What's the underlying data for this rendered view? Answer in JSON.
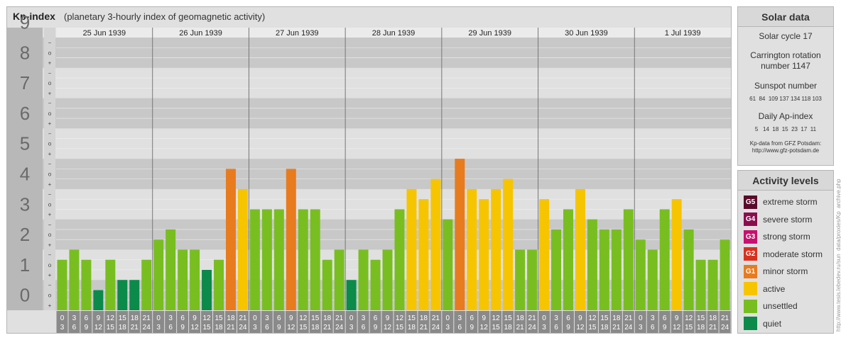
{
  "header": {
    "title": "Kp-index",
    "subtitle": "(planetary 3-hourly index of geomagnetic activity)"
  },
  "chart_data": {
    "type": "bar",
    "ylim": [
      0,
      9
    ],
    "y_ticks": [
      "0",
      "1",
      "2",
      "3",
      "4",
      "5",
      "6",
      "7",
      "8",
      "9"
    ],
    "minor_tick_labels": [
      "+",
      "o",
      "−"
    ],
    "days": [
      "25 Jun 1939",
      "26 Jun 1939",
      "27 Jun 1939",
      "28 Jun 1939",
      "29 Jun 1939",
      "30 Jun 1939",
      "1 Jul 1939"
    ],
    "interval_top": [
      "0",
      "3",
      "6",
      "9",
      "12",
      "15",
      "18",
      "21"
    ],
    "interval_bottom": [
      "3",
      "6",
      "9",
      "12",
      "15",
      "18",
      "21",
      "24"
    ],
    "values": [
      1.667,
      2,
      1.667,
      0.667,
      1.667,
      1,
      1,
      1.667,
      2.333,
      2.667,
      2,
      2,
      1.333,
      1.667,
      4.667,
      4,
      3.333,
      3.333,
      3.333,
      4.667,
      3.333,
      3.333,
      1.667,
      2,
      1,
      2,
      1.667,
      2,
      3.333,
      4,
      3.667,
      4.333,
      3,
      5,
      4,
      3.667,
      4,
      4.333,
      2,
      2,
      3.667,
      2.667,
      3.333,
      4,
      3,
      2.667,
      2.667,
      3.333,
      2.333,
      2,
      3.333,
      3.667,
      2.667,
      1.667,
      1.667,
      2.333
    ],
    "level_colors": {
      "quiet": "#0b8a4a",
      "unsettled": "#78be20",
      "active": "#f7c400",
      "G1": "#e87b1e"
    }
  },
  "solar": {
    "title": "Solar data",
    "cycle": "Solar cycle 17",
    "carrington_1": "Carrington rotation",
    "carrington_2": "number 1147",
    "sunspot_title": "Sunspot number",
    "sunspot_values": "61  84  109 137 134 118 103",
    "ap_title": "Daily Ap-index",
    "ap_values": "5   14  18  15  23  17  11",
    "source_1": "Kp-data from GFZ Potsdam:",
    "source_2": "http://www.gfz-potsdam.de"
  },
  "levels": {
    "title": "Activity levels",
    "items": [
      {
        "badge": "G5",
        "label": "extreme storm",
        "color": "#5a0a2a"
      },
      {
        "badge": "G4",
        "label": "severe storm",
        "color": "#8a0e4e"
      },
      {
        "badge": "G3",
        "label": "strong storm",
        "color": "#c8106e"
      },
      {
        "badge": "G2",
        "label": "moderate storm",
        "color": "#d9301e"
      },
      {
        "badge": "G1",
        "label": "minor storm",
        "color": "#e87b1e"
      },
      {
        "badge": "",
        "label": "active",
        "color": "#f7c400"
      },
      {
        "badge": "",
        "label": "unsettled",
        "color": "#78be20"
      },
      {
        "badge": "",
        "label": "quiet",
        "color": "#0b8a4a"
      }
    ]
  },
  "credit": "http://www.tesis.lebedev.ru/sun_data/proxies/Kp_archive.php"
}
